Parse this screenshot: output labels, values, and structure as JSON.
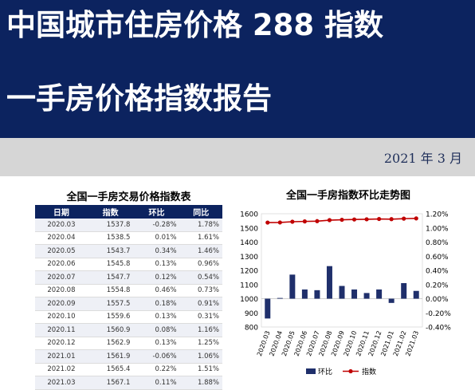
{
  "header": {
    "title_line1": "中国城市住房价格 288 指数",
    "title_line2": "一手房价格指数报告",
    "date": "2021 年 3 月"
  },
  "table": {
    "title": "全国一手房交易价格指数表",
    "columns": [
      "日期",
      "指数",
      "环比",
      "同比"
    ],
    "rows": [
      [
        "2020.03",
        "1537.8",
        "-0.28%",
        "1.78%"
      ],
      [
        "2020.04",
        "1538.5",
        "0.01%",
        "1.61%"
      ],
      [
        "2020.05",
        "1543.7",
        "0.34%",
        "1.46%"
      ],
      [
        "2020.06",
        "1545.8",
        "0.13%",
        "0.96%"
      ],
      [
        "2020.07",
        "1547.7",
        "0.12%",
        "0.54%"
      ],
      [
        "2020.08",
        "1554.8",
        "0.46%",
        "0.73%"
      ],
      [
        "2020.09",
        "1557.5",
        "0.18%",
        "0.91%"
      ],
      [
        "2020.10",
        "1559.6",
        "0.13%",
        "0.31%"
      ],
      [
        "2020.11",
        "1560.9",
        "0.08%",
        "1.16%"
      ],
      [
        "2020.12",
        "1562.9",
        "0.13%",
        "1.25%"
      ],
      [
        "2021.01",
        "1561.9",
        "-0.06%",
        "1.06%"
      ],
      [
        "2021.02",
        "1565.4",
        "0.22%",
        "1.51%"
      ],
      [
        "2021.03",
        "1567.1",
        "0.11%",
        "1.88%"
      ]
    ]
  },
  "chart": {
    "title": "全国一手房指数环比走势图",
    "legend": {
      "bar": "环比",
      "line": "指数"
    },
    "left_ticks": [
      "1600",
      "1500",
      "1400",
      "1300",
      "1200",
      "1100",
      "1000",
      "900",
      "800"
    ],
    "right_ticks": [
      "1.20%",
      "1.00%",
      "0.80%",
      "0.60%",
      "0.40%",
      "0.20%",
      "0.00%",
      "-0.20%",
      "-0.40%"
    ]
  },
  "chart_data": {
    "type": "bar",
    "title": "全国一手房指数环比走势图",
    "categories": [
      "2020.03",
      "2020.04",
      "2020.05",
      "2020.06",
      "2020.07",
      "2020.08",
      "2020.09",
      "2020.10",
      "2020.11",
      "2020.12",
      "2021.01",
      "2021.02",
      "2021.03"
    ],
    "series": [
      {
        "name": "环比",
        "type": "bar",
        "axis": "right",
        "values": [
          -0.28,
          0.01,
          0.34,
          0.13,
          0.12,
          0.46,
          0.18,
          0.13,
          0.08,
          0.13,
          -0.06,
          0.22,
          0.11
        ]
      },
      {
        "name": "指数",
        "type": "line",
        "axis": "left",
        "values": [
          1537.8,
          1538.5,
          1543.7,
          1545.8,
          1547.7,
          1554.8,
          1557.5,
          1559.6,
          1560.9,
          1562.9,
          1561.9,
          1565.4,
          1567.1
        ]
      }
    ],
    "ylim_left": [
      800,
      1600
    ],
    "ylim_right": [
      -0.4,
      1.2
    ],
    "legend_position": "bottom",
    "colors": {
      "bar": "#1f2f6b",
      "line": "#c00000",
      "header": "#0c235f"
    }
  }
}
